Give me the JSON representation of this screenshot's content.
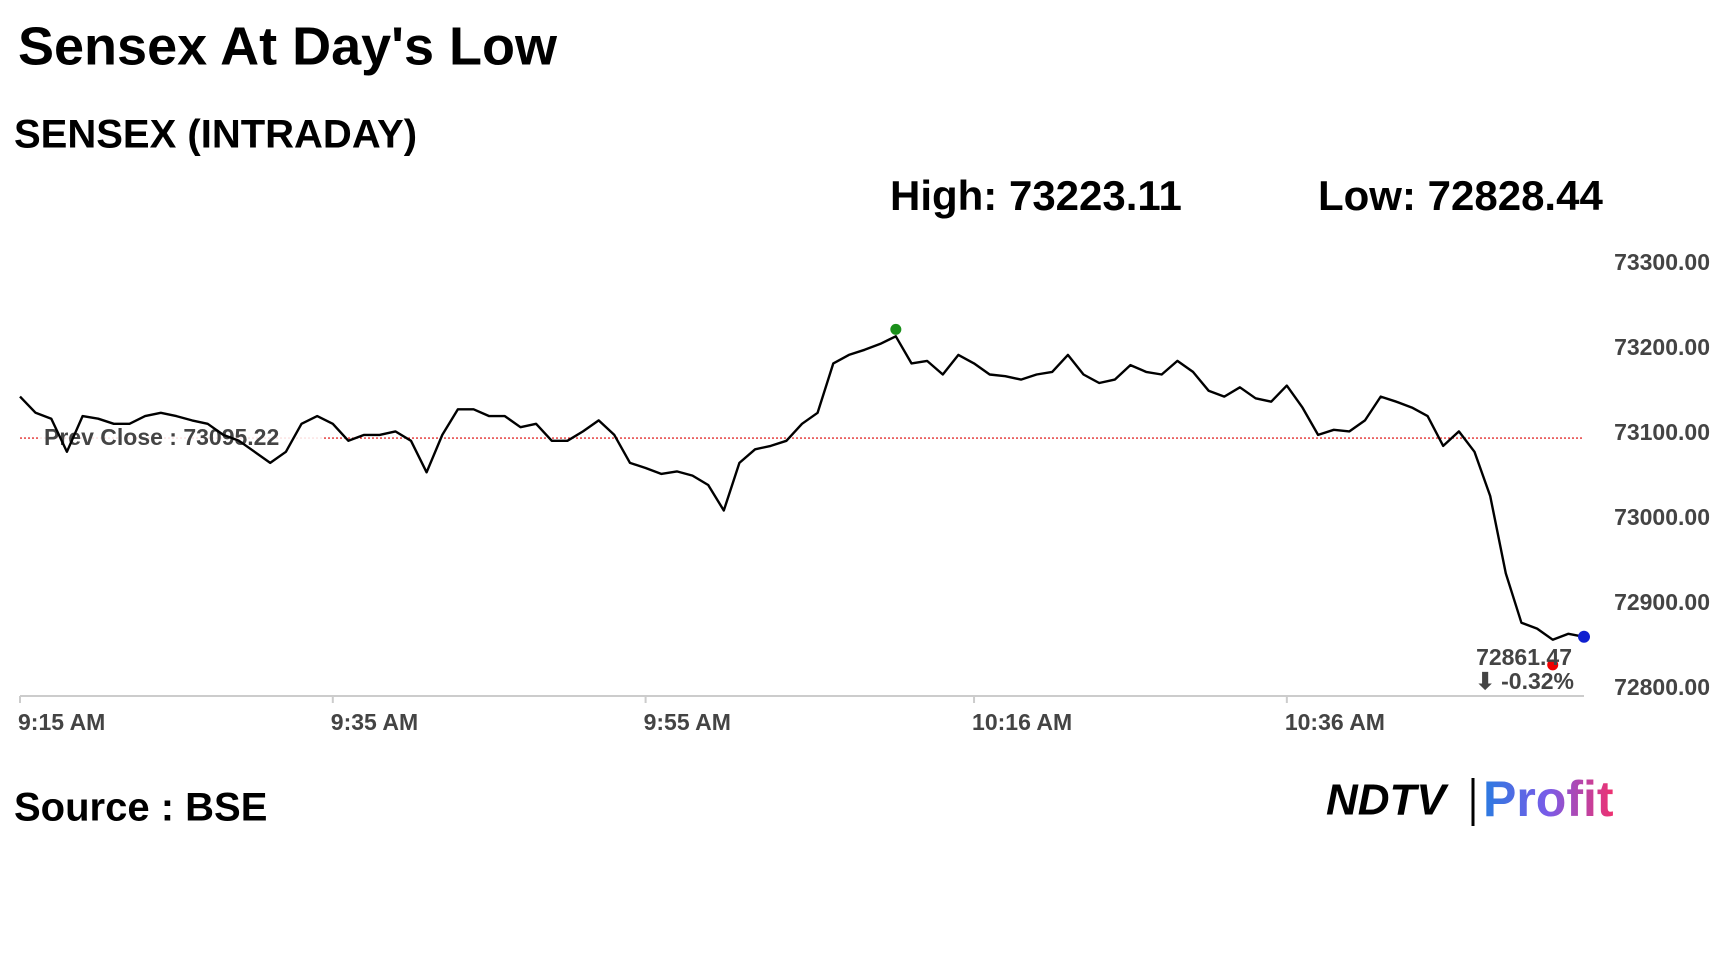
{
  "chart_data": {
    "type": "line",
    "title": "Sensex At Day's Low",
    "subtitle": "SENSEX (INTRADAY)",
    "high_label": {
      "value": 73223.11,
      "label": "High: 73223.11"
    },
    "low_label": {
      "value": 72828.44,
      "label": "Low: 72828.44"
    },
    "prev_close": {
      "value": 73095.22,
      "label": "Prev Close : 73095.22"
    },
    "change_label": "⬇ -0.32%",
    "source": "Source : BSE",
    "brand": [
      "NDTV",
      "Profit"
    ],
    "x": [
      "9:15 AM",
      "9:16 AM",
      "9:17 AM",
      "9:18 AM",
      "9:19 AM",
      "9:20 AM",
      "9:21 AM",
      "9:22 AM",
      "9:23 AM",
      "9:24 AM",
      "9:25 AM",
      "9:26 AM",
      "9:27 AM",
      "9:28 AM",
      "9:29 AM",
      "9:30 AM",
      "9:31 AM",
      "9:32 AM",
      "9:33 AM",
      "9:34 AM",
      "9:35 AM",
      "9:36 AM",
      "9:37 AM",
      "9:38 AM",
      "9:39 AM",
      "9:40 AM",
      "9:41 AM",
      "9:42 AM",
      "9:43 AM",
      "9:44 AM",
      "9:45 AM",
      "9:46 AM",
      "9:47 AM",
      "9:48 AM",
      "9:49 AM",
      "9:50 AM",
      "9:51 AM",
      "9:52 AM",
      "9:53 AM",
      "9:54 AM",
      "9:55 AM",
      "9:56 AM",
      "9:57 AM",
      "9:58 AM",
      "9:59 AM",
      "10:00 AM",
      "10:01 AM",
      "10:02 AM",
      "10:03 AM",
      "10:04 AM",
      "10:05 AM",
      "10:06 AM",
      "10:07 AM",
      "10:08 AM",
      "10:09 AM",
      "10:10 AM",
      "10:11 AM",
      "10:12 AM",
      "10:13 AM",
      "10:14 AM",
      "10:15 AM",
      "10:16 AM",
      "10:17 AM",
      "10:18 AM",
      "10:19 AM",
      "10:20 AM",
      "10:21 AM",
      "10:22 AM",
      "10:23 AM",
      "10:24 AM",
      "10:25 AM",
      "10:26 AM",
      "10:27 AM",
      "10:28 AM",
      "10:29 AM",
      "10:30 AM",
      "10:31 AM",
      "10:32 AM",
      "10:33 AM",
      "10:34 AM",
      "10:35 AM",
      "10:36 AM",
      "10:37 AM",
      "10:38 AM",
      "10:39 AM",
      "10:40 AM",
      "10:41 AM",
      "10:42 AM",
      "10:43 AM",
      "10:44 AM",
      "10:45 AM",
      "10:46 AM",
      "10:47 AM",
      "10:48 AM",
      "10:49 AM",
      "10:50 AM",
      "10:51 AM",
      "10:52 AM",
      "10:53 AM",
      "10:54 AM",
      "10:55 AM"
    ],
    "series": [
      {
        "name": "SENSEX",
        "color": "#000000",
        "values": [
          73144,
          73125,
          73118,
          73079,
          73121,
          73118,
          73112,
          73112,
          73121,
          73125,
          73121,
          73116,
          73112,
          73099,
          73092,
          73079,
          73066,
          73079,
          73112,
          73121,
          73112,
          73092,
          73099,
          73099,
          73103,
          73092,
          73055,
          73099,
          73129,
          73129,
          73121,
          73121,
          73108,
          73112,
          73092,
          73092,
          73103,
          73116,
          73099,
          73066,
          73060,
          73053,
          73056,
          73051,
          73040,
          73010,
          73066,
          73082,
          73086,
          73092,
          73112,
          73125,
          73183,
          73193,
          73199,
          73206,
          73215,
          73183,
          73186,
          73170,
          73193,
          73183,
          73170,
          73168,
          73164,
          73170,
          73173,
          73193,
          73170,
          73160,
          73164,
          73181,
          73173,
          73170,
          73186,
          73173,
          73151,
          73144,
          73155,
          73142,
          73138,
          73157,
          73131,
          73099,
          73105,
          73103,
          73116,
          73144,
          73138,
          73131,
          73121,
          73086,
          73103,
          73079,
          73027,
          72936,
          72878,
          72871,
          72858,
          72865,
          72861.47
        ]
      }
    ],
    "xticks": [
      "9:15 AM",
      "9:35 AM",
      "9:55 AM",
      "10:16 AM",
      "10:36 AM"
    ],
    "ylim": [
      72800,
      73300
    ],
    "yticks": [
      {
        "value": 72800,
        "label": "72800.00"
      },
      {
        "value": 72900,
        "label": "72900.00"
      },
      {
        "value": 73000,
        "label": "73000.00"
      },
      {
        "value": 73100,
        "label": "73100.00"
      },
      {
        "value": 73200,
        "label": "73200.00"
      },
      {
        "value": 73300,
        "label": "73300.00"
      }
    ]
  }
}
